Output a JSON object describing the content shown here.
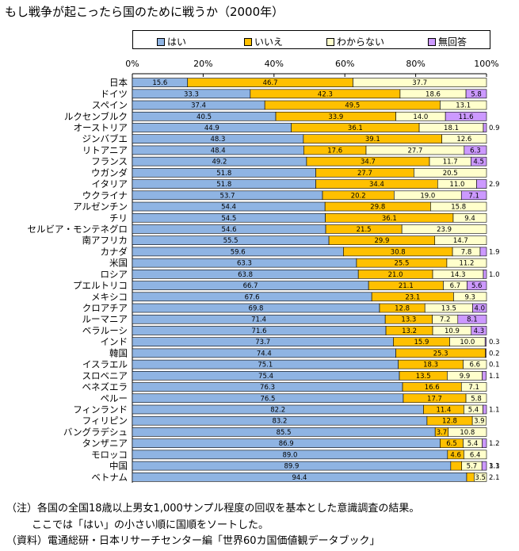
{
  "title": "もし戦争が起こったら国のために戦うか（2000年）",
  "colors": {
    "yes": "#8fb4e3",
    "no": "#ffc000",
    "dk": "#ffffcc",
    "na": "#cc99ff"
  },
  "chart_data": {
    "type": "bar",
    "orientation": "horizontal-stacked-100",
    "title": "もし戦争が起こったら国のために戦うか（2000年）",
    "xlim": [
      0,
      100
    ],
    "x_ticks": [
      "0%",
      "20%",
      "40%",
      "60%",
      "80%",
      "100%"
    ],
    "legend": [
      {
        "key": "yes",
        "label": "はい"
      },
      {
        "key": "no",
        "label": "いいえ"
      },
      {
        "key": "dk",
        "label": "わからない"
      },
      {
        "key": "na",
        "label": "無回答"
      }
    ],
    "rows": [
      {
        "name": "日本",
        "yes": 15.6,
        "no": 46.7,
        "dk": 37.7,
        "na": null
      },
      {
        "name": "ドイツ",
        "yes": 33.3,
        "no": 42.3,
        "dk": 18.6,
        "na": 5.8
      },
      {
        "name": "スペイン",
        "yes": 37.4,
        "no": 49.5,
        "dk": 13.1,
        "na": null
      },
      {
        "name": "ルクセンブルク",
        "yes": 40.5,
        "no": 33.9,
        "dk": 14.0,
        "na": 11.6
      },
      {
        "name": "オーストリア",
        "yes": 44.9,
        "no": 36.1,
        "dk": 18.1,
        "na": 0.9
      },
      {
        "name": "ジンバブエ",
        "yes": 48.3,
        "no": 39.1,
        "dk": 12.6,
        "na": null
      },
      {
        "name": "リトアニア",
        "yes": 48.4,
        "no": 17.6,
        "dk": 27.7,
        "na": 6.3
      },
      {
        "name": "フランス",
        "yes": 49.2,
        "no": 34.7,
        "dk": 11.7,
        "na": 4.5
      },
      {
        "name": "ウガンダ",
        "yes": 51.8,
        "no": 27.7,
        "dk": 20.5,
        "na": null
      },
      {
        "name": "イタリア",
        "yes": 51.8,
        "no": 34.4,
        "dk": 11.0,
        "na": 2.9
      },
      {
        "name": "ウクライナ",
        "yes": 53.7,
        "no": 20.2,
        "dk": 19.0,
        "na": 7.1
      },
      {
        "name": "アルゼンチン",
        "yes": 54.4,
        "no": 29.8,
        "dk": 15.8,
        "na": null
      },
      {
        "name": "チリ",
        "yes": 54.5,
        "no": 36.1,
        "dk": 9.4,
        "na": null
      },
      {
        "name": "セルビア・モンテネグロ",
        "yes": 54.6,
        "no": 21.5,
        "dk": 23.9,
        "na": null
      },
      {
        "name": "南アフリカ",
        "yes": 55.5,
        "no": 29.9,
        "dk": 14.7,
        "na": null
      },
      {
        "name": "カナダ",
        "yes": 59.6,
        "no": 30.8,
        "dk": 7.8,
        "na": 1.9
      },
      {
        "name": "米国",
        "yes": 63.3,
        "no": 25.5,
        "dk": 11.2,
        "na": null
      },
      {
        "name": "ロシア",
        "yes": 63.8,
        "no": 21.0,
        "dk": 14.3,
        "na": 1.0
      },
      {
        "name": "プエルトリコ",
        "yes": 66.7,
        "no": 21.1,
        "dk": 6.7,
        "na": 5.6
      },
      {
        "name": "メキシコ",
        "yes": 67.6,
        "no": 23.1,
        "dk": 9.3,
        "na": null
      },
      {
        "name": "クロアチア",
        "yes": 69.8,
        "no": 12.8,
        "dk": 13.5,
        "na": 4.0
      },
      {
        "name": "ルーマニア",
        "yes": 71.4,
        "no": 13.3,
        "dk": 7.2,
        "na": 8.1
      },
      {
        "name": "ベラルーシ",
        "yes": 71.6,
        "no": 13.2,
        "dk": 10.9,
        "na": 4.3
      },
      {
        "name": "インド",
        "yes": 73.7,
        "no": 15.9,
        "dk": 10.0,
        "na": 0.3
      },
      {
        "name": "韓国",
        "yes": 74.4,
        "no": 25.3,
        "dk": null,
        "na": 0.2
      },
      {
        "name": "イスラエル",
        "yes": 75.1,
        "no": 18.3,
        "dk": 6.6,
        "na": 0.1
      },
      {
        "name": "スロベニア",
        "yes": 75.4,
        "no": 13.5,
        "dk": 9.9,
        "na": 1.1
      },
      {
        "name": "ベネズエラ",
        "yes": 76.3,
        "no": 16.6,
        "dk": 7.1,
        "na": null
      },
      {
        "name": "ペルー",
        "yes": 76.5,
        "no": 17.7,
        "dk": 5.8,
        "na": null
      },
      {
        "name": "フィンランド",
        "yes": 82.2,
        "no": 11.4,
        "dk": 5.4,
        "na": 1.1
      },
      {
        "name": "フィリピン",
        "yes": 83.2,
        "no": 12.8,
        "dk": 3.9,
        "na": null
      },
      {
        "name": "バングラデシュ",
        "yes": 85.5,
        "no": 3.7,
        "dk": 10.8,
        "na": null
      },
      {
        "name": "タンザニア",
        "yes": 86.9,
        "no": 6.5,
        "dk": 5.4,
        "na": 1.2
      },
      {
        "name": "モロッコ",
        "yes": 89.0,
        "no": 4.6,
        "dk": 6.4,
        "na": null
      },
      {
        "name": "中国",
        "yes": 89.9,
        "no": 3.1,
        "dk": 5.7,
        "na": 1.3
      },
      {
        "name": "ベトナム",
        "yes": 94.4,
        "no": 2.1,
        "dk": 3.5,
        "na": null
      }
    ]
  },
  "notes": {
    "line1": "（注）各国の全国18歳以上男女1,000サンプル程度の回収を基本とした意識調査の結果。",
    "line2": "ここでは「はい」の小さい順に国順をソートした。",
    "line3": "（資料）電通総研・日本リサーチセンター編「世界60カ国価値観データブック」"
  }
}
